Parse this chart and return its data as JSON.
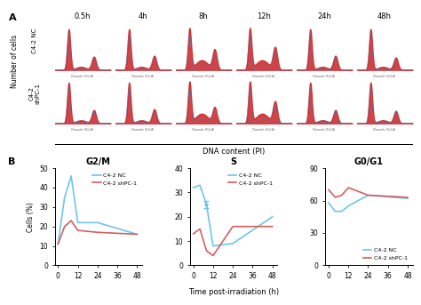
{
  "time_labels_top": [
    "0.5h",
    "4h",
    "8h",
    "12h",
    "24h",
    "48h"
  ],
  "xlabel_bottom": "DNA content (PI)",
  "row1_label": "C4-2 NC",
  "row2_label": "C4-2\nshPC-1",
  "ylabel_A": "Number of cells",
  "ylabel_B": "Cells (%)",
  "xlabel_B": "Time post-irradiation (h)",
  "g2m_title": "G2/M",
  "s_title": "S",
  "g0g1_title": "G0/G1",
  "legend_nc": "C4-2 NC",
  "legend_shpc": "C4-2 shPC-1",
  "color_nc": "#6ec6e8",
  "color_shpc": "#d45f5f",
  "time_x": [
    0,
    4,
    8,
    12,
    24,
    48
  ],
  "g2m_nc": [
    11,
    35,
    46,
    22,
    22,
    16
  ],
  "g2m_shpc": [
    11,
    20,
    23,
    18,
    17,
    16
  ],
  "s_nc": [
    32,
    33,
    25,
    8,
    9,
    20
  ],
  "s_shpc": [
    13,
    15,
    6,
    4,
    16,
    16
  ],
  "g0g1_nc": [
    58,
    50,
    50,
    55,
    65,
    62
  ],
  "g0g1_shpc": [
    70,
    63,
    65,
    72,
    65,
    63
  ],
  "g2m_ylim": [
    0,
    50
  ],
  "g2m_yticks": [
    0,
    10,
    20,
    30,
    40,
    50
  ],
  "s_ylim": [
    0,
    40
  ],
  "s_yticks": [
    0,
    10,
    20,
    30,
    40
  ],
  "g0g1_ylim": [
    0,
    90
  ],
  "g0g1_yticks": [
    0,
    30,
    60,
    90
  ],
  "x_ticks": [
    0,
    12,
    24,
    36,
    48
  ],
  "nc_configs": [
    [
      0.3,
      false
    ],
    [
      0.32,
      false
    ],
    [
      0.45,
      true
    ],
    [
      0.5,
      true
    ],
    [
      0.32,
      false
    ],
    [
      0.28,
      false
    ]
  ],
  "shpc_configs": [
    [
      0.3,
      false
    ],
    [
      0.32,
      false
    ],
    [
      0.35,
      true
    ],
    [
      0.48,
      true
    ],
    [
      0.3,
      false
    ],
    [
      0.28,
      false
    ]
  ]
}
